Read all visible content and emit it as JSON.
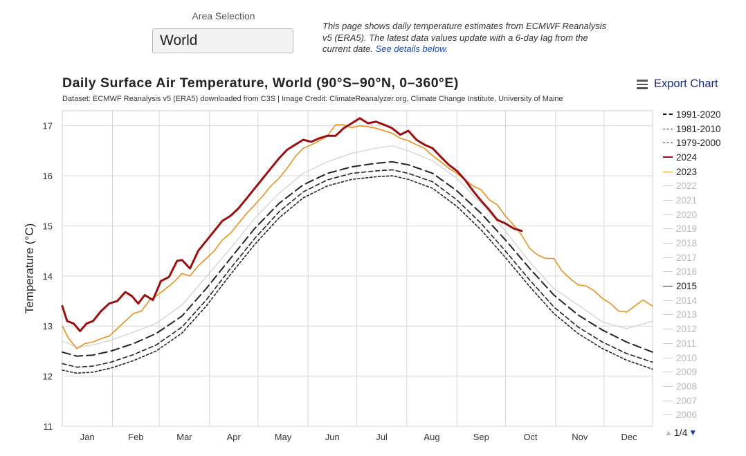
{
  "area_selection": {
    "label": "Area Selection",
    "value": "World"
  },
  "intro": {
    "text": "This page shows daily temperature estimates from ECMWF Reanalysis v5 (ERA5). The latest data values update with a 6-day lag from the current date. ",
    "link_text": "See details below."
  },
  "export_label": "Export Chart",
  "legend_pager": "1/4",
  "chart_data": {
    "type": "line",
    "title": "Daily Surface Air Temperature, World (90°S–90°N, 0–360°E)",
    "subtitle": "Dataset: ECMWF Reanalysis v5 (ERA5) downloaded from C3S | Image Credit: ClimateReanalyzer.org, Climate Change Institute, University of Maine",
    "ylabel": "Temperature (°C)",
    "xlabel": "",
    "ylim": [
      11,
      17.3
    ],
    "yticks": [
      11,
      12,
      13,
      14,
      15,
      16,
      17
    ],
    "xlim": [
      1,
      366
    ],
    "months": [
      "Jan",
      "Feb",
      "Mar",
      "Apr",
      "May",
      "Jun",
      "Jul",
      "Aug",
      "Sep",
      "Oct",
      "Nov",
      "Dec"
    ],
    "grid": true,
    "legend_position": "right",
    "series": [
      {
        "name": "1991-2020",
        "color": "#222222",
        "dash": "12,6",
        "width": 2,
        "points": [
          [
            1,
            12.48
          ],
          [
            10,
            12.4
          ],
          [
            20,
            12.42
          ],
          [
            31,
            12.5
          ],
          [
            45,
            12.65
          ],
          [
            59,
            12.85
          ],
          [
            75,
            13.2
          ],
          [
            90,
            13.75
          ],
          [
            105,
            14.35
          ],
          [
            120,
            14.95
          ],
          [
            135,
            15.45
          ],
          [
            150,
            15.82
          ],
          [
            165,
            16.05
          ],
          [
            180,
            16.18
          ],
          [
            195,
            16.25
          ],
          [
            205,
            16.28
          ],
          [
            215,
            16.22
          ],
          [
            230,
            16.05
          ],
          [
            245,
            15.7
          ],
          [
            260,
            15.25
          ],
          [
            275,
            14.72
          ],
          [
            290,
            14.15
          ],
          [
            305,
            13.62
          ],
          [
            320,
            13.22
          ],
          [
            335,
            12.92
          ],
          [
            350,
            12.68
          ],
          [
            366,
            12.48
          ]
        ]
      },
      {
        "name": "1981-2010",
        "color": "#222222",
        "dash": "6,4",
        "width": 1.6,
        "points": [
          [
            1,
            12.25
          ],
          [
            10,
            12.18
          ],
          [
            20,
            12.2
          ],
          [
            31,
            12.28
          ],
          [
            45,
            12.43
          ],
          [
            59,
            12.62
          ],
          [
            75,
            12.98
          ],
          [
            90,
            13.52
          ],
          [
            105,
            14.15
          ],
          [
            120,
            14.75
          ],
          [
            135,
            15.28
          ],
          [
            150,
            15.68
          ],
          [
            165,
            15.92
          ],
          [
            180,
            16.05
          ],
          [
            195,
            16.1
          ],
          [
            205,
            16.12
          ],
          [
            215,
            16.05
          ],
          [
            230,
            15.88
          ],
          [
            245,
            15.52
          ],
          [
            260,
            15.05
          ],
          [
            275,
            14.5
          ],
          [
            290,
            13.92
          ],
          [
            305,
            13.38
          ],
          [
            320,
            12.98
          ],
          [
            335,
            12.68
          ],
          [
            350,
            12.45
          ],
          [
            366,
            12.28
          ]
        ]
      },
      {
        "name": "1979-2000",
        "color": "#222222",
        "dash": "3,3",
        "width": 1.6,
        "points": [
          [
            1,
            12.12
          ],
          [
            10,
            12.06
          ],
          [
            20,
            12.08
          ],
          [
            31,
            12.16
          ],
          [
            45,
            12.31
          ],
          [
            59,
            12.5
          ],
          [
            75,
            12.86
          ],
          [
            90,
            13.4
          ],
          [
            105,
            14.03
          ],
          [
            120,
            14.63
          ],
          [
            135,
            15.16
          ],
          [
            150,
            15.56
          ],
          [
            165,
            15.8
          ],
          [
            180,
            15.93
          ],
          [
            195,
            15.98
          ],
          [
            205,
            16.0
          ],
          [
            215,
            15.93
          ],
          [
            230,
            15.75
          ],
          [
            245,
            15.39
          ],
          [
            260,
            14.92
          ],
          [
            275,
            14.37
          ],
          [
            290,
            13.79
          ],
          [
            305,
            13.25
          ],
          [
            320,
            12.85
          ],
          [
            335,
            12.55
          ],
          [
            350,
            12.32
          ],
          [
            366,
            12.14
          ]
        ]
      },
      {
        "name": "2024",
        "color": "#9b0f0f",
        "dash": "",
        "width": 3,
        "points": [
          [
            1,
            13.4
          ],
          [
            4,
            13.1
          ],
          [
            8,
            13.05
          ],
          [
            12,
            12.9
          ],
          [
            16,
            13.05
          ],
          [
            20,
            13.1
          ],
          [
            25,
            13.3
          ],
          [
            30,
            13.45
          ],
          [
            35,
            13.5
          ],
          [
            40,
            13.68
          ],
          [
            44,
            13.6
          ],
          [
            48,
            13.45
          ],
          [
            52,
            13.62
          ],
          [
            57,
            13.52
          ],
          [
            62,
            13.9
          ],
          [
            67,
            13.98
          ],
          [
            72,
            14.3
          ],
          [
            75,
            14.32
          ],
          [
            80,
            14.15
          ],
          [
            85,
            14.5
          ],
          [
            90,
            14.7
          ],
          [
            95,
            14.9
          ],
          [
            100,
            15.1
          ],
          [
            105,
            15.2
          ],
          [
            110,
            15.35
          ],
          [
            115,
            15.55
          ],
          [
            120,
            15.75
          ],
          [
            125,
            15.95
          ],
          [
            130,
            16.15
          ],
          [
            135,
            16.35
          ],
          [
            140,
            16.52
          ],
          [
            145,
            16.62
          ],
          [
            150,
            16.72
          ],
          [
            155,
            16.68
          ],
          [
            160,
            16.75
          ],
          [
            165,
            16.8
          ],
          [
            170,
            16.8
          ],
          [
            175,
            16.95
          ],
          [
            180,
            17.05
          ],
          [
            185,
            17.15
          ],
          [
            190,
            17.05
          ],
          [
            195,
            17.08
          ],
          [
            200,
            17.02
          ],
          [
            205,
            16.95
          ],
          [
            210,
            16.82
          ],
          [
            215,
            16.9
          ],
          [
            220,
            16.72
          ],
          [
            225,
            16.62
          ],
          [
            230,
            16.55
          ],
          [
            235,
            16.38
          ],
          [
            240,
            16.22
          ],
          [
            245,
            16.1
          ],
          [
            250,
            15.92
          ],
          [
            255,
            15.7
          ],
          [
            260,
            15.5
          ],
          [
            265,
            15.32
          ],
          [
            270,
            15.12
          ],
          [
            275,
            15.05
          ],
          [
            280,
            14.95
          ],
          [
            285,
            14.9
          ]
        ]
      },
      {
        "name": "2023",
        "color": "#e8901e",
        "dash": "",
        "width": 1.6,
        "points": [
          [
            1,
            13.0
          ],
          [
            5,
            12.75
          ],
          [
            10,
            12.55
          ],
          [
            15,
            12.65
          ],
          [
            20,
            12.68
          ],
          [
            25,
            12.75
          ],
          [
            30,
            12.8
          ],
          [
            35,
            12.95
          ],
          [
            40,
            13.1
          ],
          [
            45,
            13.25
          ],
          [
            50,
            13.3
          ],
          [
            55,
            13.52
          ],
          [
            60,
            13.62
          ],
          [
            65,
            13.75
          ],
          [
            70,
            13.88
          ],
          [
            75,
            14.05
          ],
          [
            80,
            14.0
          ],
          [
            85,
            14.2
          ],
          [
            90,
            14.35
          ],
          [
            95,
            14.5
          ],
          [
            100,
            14.72
          ],
          [
            105,
            14.85
          ],
          [
            110,
            15.05
          ],
          [
            115,
            15.25
          ],
          [
            120,
            15.42
          ],
          [
            125,
            15.6
          ],
          [
            130,
            15.8
          ],
          [
            135,
            15.95
          ],
          [
            140,
            16.15
          ],
          [
            145,
            16.38
          ],
          [
            150,
            16.55
          ],
          [
            155,
            16.62
          ],
          [
            160,
            16.7
          ],
          [
            165,
            16.8
          ],
          [
            170,
            17.02
          ],
          [
            175,
            17.02
          ],
          [
            180,
            16.96
          ],
          [
            185,
            17.0
          ],
          [
            190,
            16.98
          ],
          [
            195,
            16.95
          ],
          [
            200,
            16.9
          ],
          [
            205,
            16.85
          ],
          [
            210,
            16.75
          ],
          [
            215,
            16.7
          ],
          [
            220,
            16.62
          ],
          [
            225,
            16.55
          ],
          [
            230,
            16.4
          ],
          [
            235,
            16.28
          ],
          [
            240,
            16.15
          ],
          [
            245,
            16.05
          ],
          [
            250,
            15.92
          ],
          [
            255,
            15.8
          ],
          [
            260,
            15.72
          ],
          [
            265,
            15.52
          ],
          [
            270,
            15.42
          ],
          [
            275,
            15.2
          ],
          [
            280,
            15.02
          ],
          [
            285,
            14.82
          ],
          [
            290,
            14.55
          ],
          [
            295,
            14.42
          ],
          [
            300,
            14.35
          ],
          [
            305,
            14.35
          ],
          [
            310,
            14.1
          ],
          [
            315,
            13.95
          ],
          [
            320,
            13.82
          ],
          [
            325,
            13.8
          ],
          [
            330,
            13.7
          ],
          [
            335,
            13.55
          ],
          [
            340,
            13.45
          ],
          [
            345,
            13.3
          ],
          [
            350,
            13.28
          ],
          [
            355,
            13.4
          ],
          [
            360,
            13.52
          ],
          [
            366,
            13.4
          ]
        ]
      },
      {
        "name": "2022",
        "color": "#cfcfcf",
        "dash": "",
        "width": 1.2,
        "hidden": true,
        "points": [
          [
            1,
            12.7
          ],
          [
            10,
            12.58
          ],
          [
            20,
            12.62
          ],
          [
            31,
            12.72
          ],
          [
            45,
            12.88
          ],
          [
            59,
            13.05
          ],
          [
            75,
            13.42
          ],
          [
            90,
            13.98
          ],
          [
            105,
            14.55
          ],
          [
            120,
            15.15
          ],
          [
            135,
            15.65
          ],
          [
            150,
            16.05
          ],
          [
            165,
            16.28
          ],
          [
            180,
            16.45
          ],
          [
            195,
            16.55
          ],
          [
            205,
            16.6
          ],
          [
            215,
            16.5
          ],
          [
            230,
            16.3
          ],
          [
            245,
            15.95
          ],
          [
            260,
            15.45
          ],
          [
            275,
            14.9
          ],
          [
            290,
            14.28
          ],
          [
            305,
            13.75
          ],
          [
            320,
            13.42
          ],
          [
            335,
            13.08
          ],
          [
            350,
            12.95
          ],
          [
            366,
            13.1
          ]
        ]
      },
      {
        "name": "2021",
        "color": "#cfcfcf",
        "dash": "",
        "width": 1.2,
        "hidden": true,
        "points": []
      },
      {
        "name": "2020",
        "color": "#cfcfcf",
        "dash": "",
        "width": 1.2,
        "hidden": true,
        "points": []
      },
      {
        "name": "2019",
        "color": "#cfcfcf",
        "dash": "",
        "width": 1.2,
        "hidden": true,
        "points": []
      },
      {
        "name": "2018",
        "color": "#cfcfcf",
        "dash": "",
        "width": 1.2,
        "hidden": true,
        "points": []
      },
      {
        "name": "2017",
        "color": "#cfcfcf",
        "dash": "",
        "width": 1.2,
        "hidden": true,
        "points": []
      },
      {
        "name": "2016",
        "color": "#cfcfcf",
        "dash": "",
        "width": 1.2,
        "hidden": true,
        "points": []
      },
      {
        "name": "2015",
        "color": "#222222",
        "dash": "",
        "width": 1.2,
        "points": []
      },
      {
        "name": "2014",
        "color": "#cfcfcf",
        "dash": "",
        "width": 1.2,
        "hidden": true,
        "points": []
      },
      {
        "name": "2013",
        "color": "#cfcfcf",
        "dash": "",
        "width": 1.2,
        "hidden": true,
        "points": []
      },
      {
        "name": "2012",
        "color": "#cfcfcf",
        "dash": "",
        "width": 1.2,
        "hidden": true,
        "points": []
      },
      {
        "name": "2011",
        "color": "#cfcfcf",
        "dash": "",
        "width": 1.2,
        "hidden": true,
        "points": []
      },
      {
        "name": "2010",
        "color": "#cfcfcf",
        "dash": "",
        "width": 1.2,
        "hidden": true,
        "points": []
      },
      {
        "name": "2009",
        "color": "#cfcfcf",
        "dash": "",
        "width": 1.2,
        "hidden": true,
        "points": []
      },
      {
        "name": "2008",
        "color": "#cfcfcf",
        "dash": "",
        "width": 1.2,
        "hidden": true,
        "points": []
      },
      {
        "name": "2007",
        "color": "#cfcfcf",
        "dash": "",
        "width": 1.2,
        "hidden": true,
        "points": []
      },
      {
        "name": "2006",
        "color": "#cfcfcf",
        "dash": "",
        "width": 1.2,
        "hidden": true,
        "points": []
      }
    ]
  }
}
